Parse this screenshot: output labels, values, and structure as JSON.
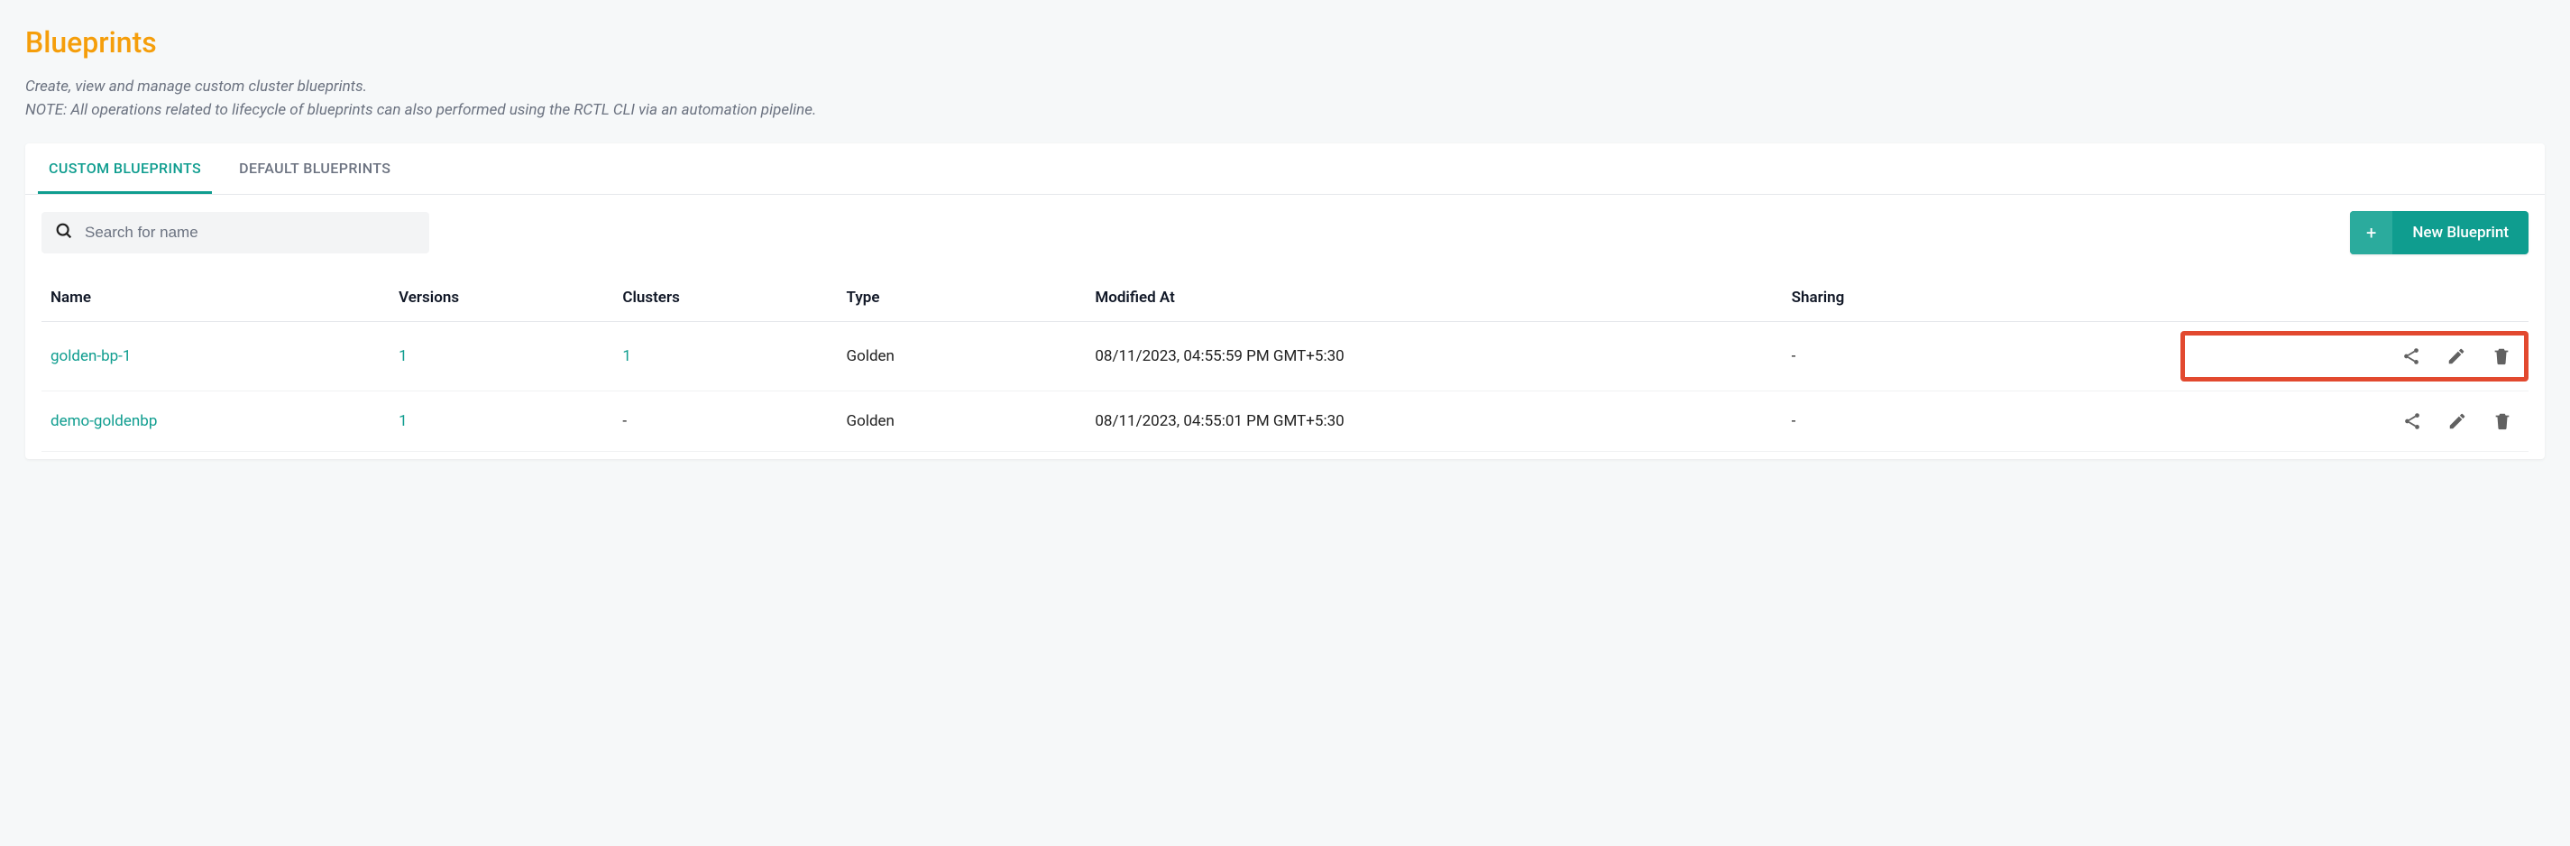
{
  "header": {
    "title": "Blueprints",
    "description_line1": "Create, view and manage custom cluster blueprints.",
    "description_line2": "NOTE: All operations related to lifecycle of blueprints can also performed using the RCTL CLI via an automation pipeline."
  },
  "tabs": {
    "custom": "CUSTOM BLUEPRINTS",
    "default": "DEFAULT BLUEPRINTS",
    "active": "custom"
  },
  "toolbar": {
    "search_placeholder": "Search for name",
    "new_button_label": "New Blueprint"
  },
  "table": {
    "columns": {
      "name": "Name",
      "versions": "Versions",
      "clusters": "Clusters",
      "type": "Type",
      "modified": "Modified At",
      "sharing": "Sharing"
    },
    "rows": [
      {
        "name": "golden-bp-1",
        "versions": "1",
        "clusters": "1",
        "type": "Golden",
        "modified": "08/11/2023, 04:55:59 PM GMT+5:30",
        "sharing": "-",
        "highlight": true
      },
      {
        "name": "demo-goldenbp",
        "versions": "1",
        "clusters": "-",
        "type": "Golden",
        "modified": "08/11/2023, 04:55:01 PM GMT+5:30",
        "sharing": "-",
        "highlight": false
      }
    ]
  },
  "colors": {
    "accent": "#0f9d8f",
    "title": "#f59e0b",
    "highlight_border": "#e2492f",
    "icon": "#616161",
    "background": "#f6f8f9"
  }
}
